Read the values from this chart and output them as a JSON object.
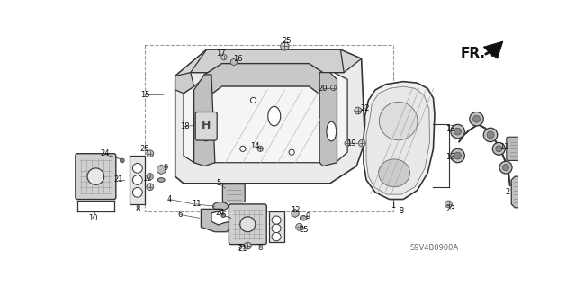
{
  "bg_color": "#ffffff",
  "fig_width": 6.4,
  "fig_height": 3.19,
  "watermark": "S9V4B0900A",
  "fr_label": "FR.",
  "line_color": "#333333",
  "gray_fill": "#e0e0e0",
  "dark_gray": "#888888"
}
